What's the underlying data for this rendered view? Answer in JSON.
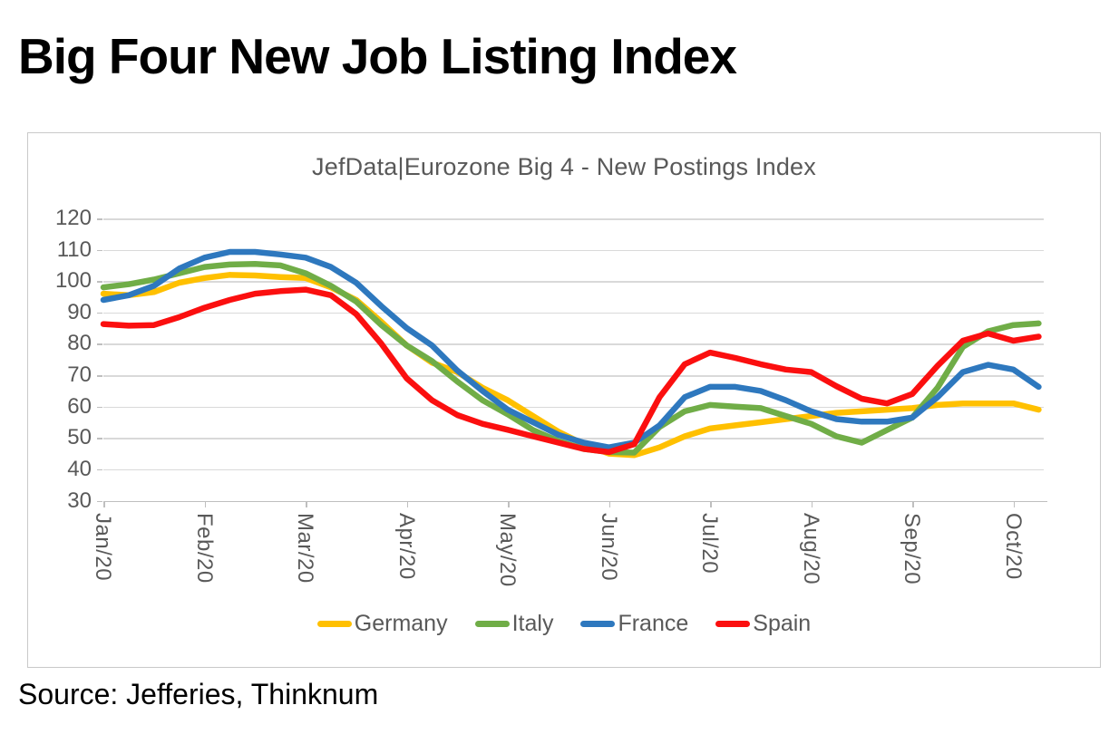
{
  "page": {
    "title": "Big Four New Job Listing Index",
    "source": "Source: Jefferies, Thinknum"
  },
  "chart_data": {
    "type": "line",
    "title": "JefData|Eurozone Big 4 - New Postings Index",
    "x_tick_labels": [
      "Jan/20",
      "Feb/20",
      "Mar/20",
      "Apr/20",
      "May/20",
      "Jun/20",
      "Jul/20",
      "Aug/20",
      "Sep/20",
      "Oct/20"
    ],
    "y_ticks": [
      120,
      110,
      100,
      90,
      80,
      70,
      60,
      50,
      40,
      30
    ],
    "ylim": [
      30,
      120
    ],
    "grid": true,
    "legend_position": "bottom",
    "x_unit": "months since Jan/20",
    "x_start": 0,
    "x_step": 0.25,
    "series": [
      {
        "name": "Germany",
        "color": "#FFC000",
        "values": [
          96,
          95.5,
          96.5,
          99.5,
          101,
          102,
          101.8,
          101.3,
          101,
          98,
          94,
          87,
          79.5,
          74,
          71,
          66,
          62,
          57,
          52,
          48,
          45,
          44.5,
          47,
          50.5,
          53,
          54,
          55,
          56,
          57,
          58,
          58.5,
          59,
          59.5,
          60.5,
          61,
          61,
          61,
          59
        ]
      },
      {
        "name": "Italy",
        "color": "#70AD47",
        "values": [
          98,
          99,
          100.5,
          102.5,
          104.5,
          105.3,
          105.5,
          105,
          102.5,
          98.5,
          93.5,
          86,
          79.5,
          74.5,
          68,
          62,
          57.5,
          52.5,
          49,
          46.5,
          45.5,
          45.3,
          53.5,
          58.5,
          60.5,
          60,
          59.5,
          57,
          54.5,
          50.5,
          48.5,
          52.5,
          56.5,
          66,
          79,
          84,
          86,
          86.5
        ]
      },
      {
        "name": "France",
        "color": "#2E78BE",
        "values": [
          94,
          95.5,
          98.5,
          104,
          107.5,
          109.3,
          109.3,
          108.5,
          107.5,
          104.5,
          99.5,
          92,
          85,
          79.5,
          71.5,
          65,
          59,
          55,
          51,
          48.5,
          47,
          48.5,
          54,
          63,
          66.3,
          66.3,
          65,
          62,
          58.5,
          56,
          55.2,
          55.2,
          56.5,
          63,
          71,
          73.3,
          71.8,
          66.3
        ]
      },
      {
        "name": "Spain",
        "color": "#FB0F0F",
        "values": [
          86.3,
          85.8,
          86,
          88.5,
          91.5,
          94,
          96,
          96.8,
          97.3,
          95.5,
          89.5,
          80,
          69,
          62,
          57.3,
          54.5,
          52.6,
          50.5,
          48.5,
          46.5,
          45.5,
          48,
          63,
          73.5,
          77.2,
          75.5,
          73.5,
          71.8,
          71,
          66.5,
          62.5,
          61,
          64,
          73,
          81,
          83.3,
          81,
          82.3
        ]
      }
    ]
  }
}
